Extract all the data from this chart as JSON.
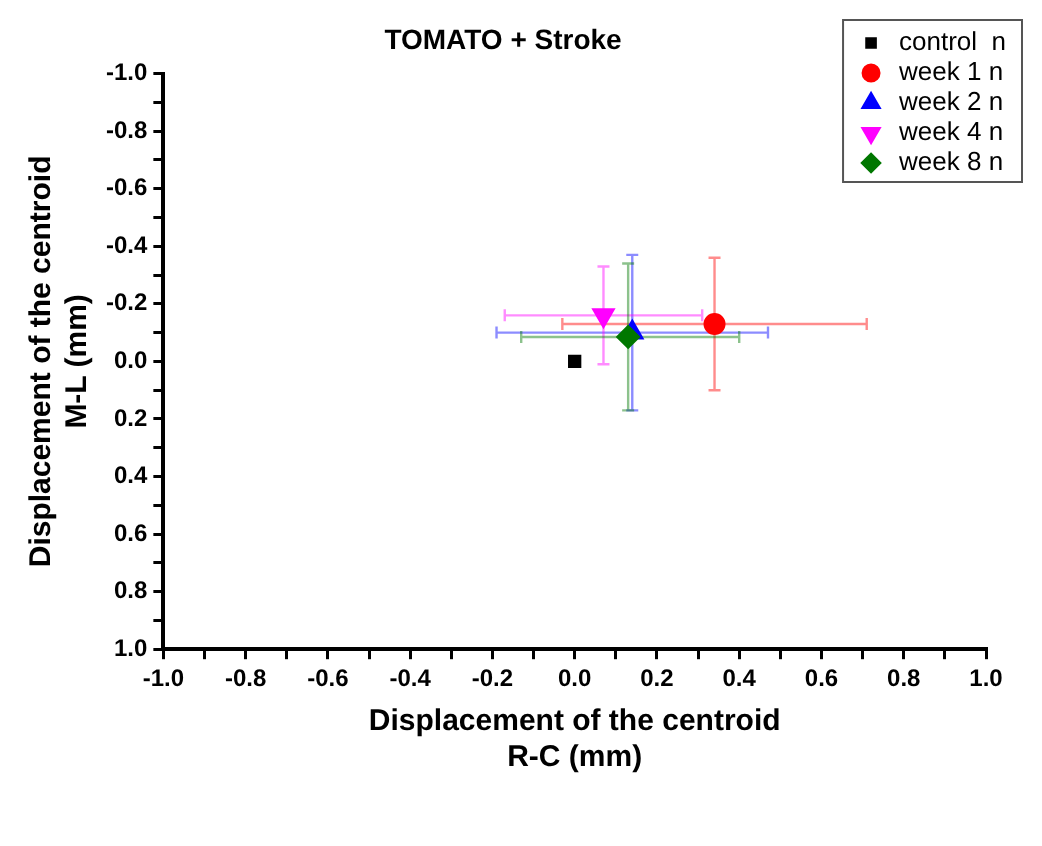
{
  "chart_data": {
    "type": "scatter",
    "title": "TOMATO + Stroke",
    "xlabel": "Displacement of the centroid\nR-C (mm)",
    "ylabel": "Displacement of the centroid\nM-L (mm)",
    "xlim": [
      -1.0,
      1.0
    ],
    "ylim": [
      1.0,
      -1.0
    ],
    "xticks": [
      {
        "value": -1.0,
        "label": "-1.0"
      },
      {
        "value": -0.9,
        "label": null
      },
      {
        "value": -0.8,
        "label": "-0.8"
      },
      {
        "value": -0.7,
        "label": null
      },
      {
        "value": -0.6,
        "label": "-0.6"
      },
      {
        "value": -0.5,
        "label": null
      },
      {
        "value": -0.4,
        "label": "-0.4"
      },
      {
        "value": -0.3,
        "label": null
      },
      {
        "value": -0.2,
        "label": "-0.2"
      },
      {
        "value": -0.1,
        "label": null
      },
      {
        "value": 0.0,
        "label": "0.0"
      },
      {
        "value": 0.1,
        "label": null
      },
      {
        "value": 0.2,
        "label": "0.2"
      },
      {
        "value": 0.3,
        "label": null
      },
      {
        "value": 0.4,
        "label": "0.4"
      },
      {
        "value": 0.5,
        "label": null
      },
      {
        "value": 0.6,
        "label": "0.6"
      },
      {
        "value": 0.7,
        "label": null
      },
      {
        "value": 0.8,
        "label": "0.8"
      },
      {
        "value": 0.9,
        "label": null
      },
      {
        "value": 1.0,
        "label": "1.0"
      }
    ],
    "yticks": [
      {
        "value": -1.0,
        "label": "-1.0"
      },
      {
        "value": -0.9,
        "label": null
      },
      {
        "value": -0.8,
        "label": "-0.8"
      },
      {
        "value": -0.7,
        "label": null
      },
      {
        "value": -0.6,
        "label": "-0.6"
      },
      {
        "value": -0.5,
        "label": null
      },
      {
        "value": -0.4,
        "label": "-0.4"
      },
      {
        "value": -0.3,
        "label": null
      },
      {
        "value": -0.2,
        "label": "-0.2"
      },
      {
        "value": -0.1,
        "label": null
      },
      {
        "value": 0.0,
        "label": "0.0"
      },
      {
        "value": 0.1,
        "label": null
      },
      {
        "value": 0.2,
        "label": "0.2"
      },
      {
        "value": 0.3,
        "label": null
      },
      {
        "value": 0.4,
        "label": "0.4"
      },
      {
        "value": 0.5,
        "label": null
      },
      {
        "value": 0.6,
        "label": "0.6"
      },
      {
        "value": 0.7,
        "label": null
      },
      {
        "value": 0.8,
        "label": "0.8"
      },
      {
        "value": 0.9,
        "label": null
      },
      {
        "value": 1.0,
        "label": "1.0"
      }
    ],
    "grid": false,
    "legend": "top right",
    "series": [
      {
        "name": "control  n",
        "color": "#000000",
        "marker": "square",
        "x": [
          0.0
        ],
        "values": [
          0.0
        ]
      },
      {
        "name": "week 1 n",
        "color": "#ff0000",
        "marker": "circle",
        "x": [
          0.34
        ],
        "values": [
          -0.13
        ],
        "errors": [
          [
            -0.36,
            0.1
          ]
        ],
        "xerrors": [
          [
            -0.03,
            0.71
          ]
        ]
      },
      {
        "name": "week 2 n",
        "color": "#0000ff",
        "marker": "triangle",
        "x": [
          0.14
        ],
        "values": [
          -0.1
        ],
        "errors": [
          [
            -0.37,
            0.17
          ]
        ],
        "xerrors": [
          [
            -0.19,
            0.47
          ]
        ]
      },
      {
        "name": "week 4 n",
        "color": "#ff00ff",
        "marker": "triangle-down",
        "x": [
          0.07
        ],
        "values": [
          -0.16
        ],
        "errors": [
          [
            -0.33,
            0.01
          ]
        ],
        "xerrors": [
          [
            -0.17,
            0.31
          ]
        ]
      },
      {
        "name": "week 8 n",
        "color": "#007700",
        "marker": "diamond",
        "x": [
          0.13
        ],
        "values": [
          -0.085
        ],
        "errors": [
          [
            -0.34,
            0.17
          ]
        ],
        "xerrors": [
          [
            -0.13,
            0.4
          ]
        ]
      }
    ]
  }
}
